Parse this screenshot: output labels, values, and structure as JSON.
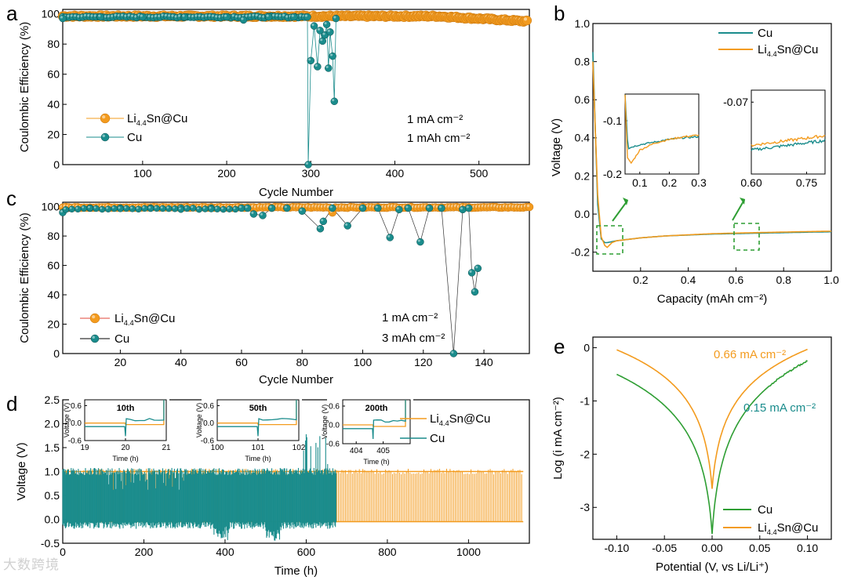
{
  "colors": {
    "orange": "#F39B1E",
    "teal": "#1A8C8C",
    "green": "#2E9E33",
    "inset_box": "#2E9E33"
  },
  "watermark": "大数跨境",
  "chart_data": [
    {
      "panel": "a",
      "type": "scatter",
      "xlabel": "Cycle Number",
      "ylabel": "Coulombic Efficiency (%)",
      "xlim": [
        5,
        560
      ],
      "ylim": [
        0,
        103
      ],
      "xticks": [
        100,
        200,
        300,
        400,
        500
      ],
      "yticks": [
        0,
        20,
        40,
        60,
        80,
        100
      ],
      "legend_position": "middle-left",
      "annotations": [
        "1 mA cm⁻²",
        "1 mAh cm⁻²"
      ],
      "series": [
        {
          "name": "Li4.4Sn@Cu",
          "name_base": "Li",
          "name_sub": "4.4",
          "name_rest": "Sn@Cu",
          "color": "#F39B1E",
          "x_range": [
            5,
            558
          ],
          "baseline": 98.5,
          "end_value": 95
        },
        {
          "name": "Cu",
          "color": "#1A8C8C",
          "x": [
            5,
            50,
            100,
            150,
            200,
            220,
            250,
            280,
            296,
            297,
            300,
            304,
            308,
            311,
            314,
            317,
            319,
            321,
            323,
            326,
            328,
            330
          ],
          "y": [
            97,
            98,
            98,
            98,
            98,
            96,
            98,
            98,
            98,
            0,
            69,
            92,
            65,
            89,
            82,
            86,
            93,
            64,
            88,
            72,
            42,
            97
          ]
        }
      ]
    },
    {
      "panel": "b",
      "type": "line",
      "xlabel": "Capacity (mAh cm⁻²)",
      "ylabel": "Voltage (V)",
      "xlim": [
        0,
        1.0
      ],
      "ylim": [
        -0.3,
        1.0
      ],
      "xticks": [
        0.2,
        0.4,
        0.6,
        0.8,
        1.0
      ],
      "yticks": [
        -0.2,
        0.0,
        0.2,
        0.4,
        0.6,
        0.8,
        1.0
      ],
      "legend_position": "top-right",
      "series": [
        {
          "name": "Cu",
          "color": "#1A8C8C",
          "x": [
            0.0,
            0.02,
            0.035,
            0.05,
            0.06,
            0.08,
            0.1,
            0.2,
            0.3,
            0.5,
            0.7,
            0.9,
            1.0
          ],
          "y": [
            0.85,
            0.05,
            -0.13,
            -0.15,
            -0.15,
            -0.145,
            -0.14,
            -0.125,
            -0.115,
            -0.105,
            -0.1,
            -0.095,
            -0.093
          ]
        },
        {
          "name": "Li4.4Sn@Cu",
          "name_base": "Li",
          "name_sub": "4.4",
          "name_rest": "Sn@Cu",
          "color": "#F39B1E",
          "x": [
            0.0,
            0.02,
            0.035,
            0.05,
            0.06,
            0.08,
            0.1,
            0.2,
            0.3,
            0.5,
            0.7,
            0.9,
            1.0
          ],
          "y": [
            0.8,
            0.1,
            -0.12,
            -0.165,
            -0.175,
            -0.15,
            -0.14,
            -0.125,
            -0.115,
            -0.103,
            -0.097,
            -0.092,
            -0.09
          ]
        }
      ],
      "insets": [
        {
          "xlim": [
            0.05,
            0.3
          ],
          "ylim": [
            -0.2,
            -0.05
          ],
          "xticks": [
            0.1,
            0.2,
            0.3
          ],
          "yticks": [
            -0.1,
            -0.2
          ],
          "series": [
            {
              "color": "#1A8C8C",
              "x": [
                0.05,
                0.06,
                0.08,
                0.1,
                0.15,
                0.2,
                0.25,
                0.3
              ],
              "y": [
                -0.05,
                -0.152,
                -0.148,
                -0.145,
                -0.14,
                -0.135,
                -0.132,
                -0.13
              ]
            },
            {
              "color": "#F39B1E",
              "x": [
                0.05,
                0.058,
                0.07,
                0.08,
                0.1,
                0.15,
                0.2,
                0.25,
                0.3
              ],
              "y": [
                -0.05,
                -0.17,
                -0.18,
                -0.172,
                -0.155,
                -0.142,
                -0.135,
                -0.13,
                -0.127
              ]
            }
          ]
        },
        {
          "xlim": [
            0.6,
            0.8
          ],
          "ylim": [
            -0.1,
            -0.065
          ],
          "xticks": [
            0.6,
            0.75
          ],
          "yticks": [
            -0.07
          ],
          "series": [
            {
              "color": "#1A8C8C",
              "x": [
                0.6,
                0.65,
                0.7,
                0.75,
                0.8
              ],
              "y": [
                -0.09,
                -0.089,
                -0.088,
                -0.087,
                -0.086
              ]
            },
            {
              "color": "#F39B1E",
              "x": [
                0.6,
                0.65,
                0.7,
                0.75,
                0.8
              ],
              "y": [
                -0.088,
                -0.087,
                -0.086,
                -0.085,
                -0.084
              ]
            }
          ]
        }
      ]
    },
    {
      "panel": "c",
      "type": "scatter",
      "xlabel": "Cycle Number",
      "ylabel": "Coulombic Efficiency (%)",
      "xlim": [
        1,
        155
      ],
      "ylim": [
        0,
        103
      ],
      "xticks": [
        20,
        40,
        60,
        80,
        100,
        120,
        140
      ],
      "yticks": [
        0,
        20,
        40,
        60,
        80,
        100
      ],
      "legend_position": "lower-left",
      "annotations": [
        "1 mA cm⁻²",
        "3 mAh cm⁻²"
      ],
      "series": [
        {
          "name": "Li4.4Sn@Cu",
          "name_base": "Li",
          "name_sub": "4.4",
          "name_rest": "Sn@Cu",
          "color": "#F39B1E",
          "x_range": [
            1,
            155
          ],
          "baseline": 99.5,
          "dips": [
            [
              90,
              96
            ]
          ]
        },
        {
          "name": "Cu",
          "color": "#1A8C8C",
          "x": [
            1,
            10,
            20,
            30,
            40,
            50,
            60,
            62,
            64,
            67,
            70,
            75,
            80,
            86,
            87,
            90,
            95,
            100,
            105,
            109,
            112,
            115,
            119,
            122,
            126,
            130,
            133,
            135,
            136,
            137,
            138
          ],
          "y": [
            96,
            99,
            99,
            99,
            99,
            99,
            99,
            99,
            95,
            94,
            99,
            99,
            97,
            85,
            90,
            99,
            87,
            99,
            99,
            79,
            98,
            99,
            76,
            99,
            99,
            0,
            98,
            99,
            55,
            42,
            58
          ]
        }
      ]
    },
    {
      "panel": "d",
      "type": "line",
      "xlabel": "Time (h)",
      "ylabel": "Voltage (V)",
      "xlim": [
        0,
        1150
      ],
      "ylim": [
        -0.5,
        2.5
      ],
      "xticks": [
        0,
        200,
        400,
        600,
        800,
        1000
      ],
      "yticks": [
        -0.5,
        0.0,
        0.5,
        1.0,
        1.5,
        2.0,
        2.5
      ],
      "legend_position": "top-right",
      "series": [
        {
          "name": "Li4.4Sn@Cu",
          "name_base": "Li",
          "name_sub": "4.4",
          "name_rest": "Sn@Cu",
          "color": "#F39B1E",
          "x_range": [
            0,
            1135
          ],
          "upper": 1.0,
          "lower": -0.05
        },
        {
          "name": "Cu",
          "color": "#1A8C8C",
          "x_range": [
            0,
            675
          ],
          "upper": 1.05,
          "lower": -0.1,
          "spike_max": 1.8,
          "dip_min": -0.45
        }
      ],
      "insets": [
        {
          "title": "10th",
          "ylabel": "Voltage (V)",
          "xlabel": "Time (h)",
          "xlim": [
            19,
            21
          ],
          "ylim": [
            -0.6,
            0.8
          ],
          "xticks": [
            19,
            20,
            21
          ],
          "yticks": [
            0.6,
            0.0,
            -0.6
          ]
        },
        {
          "title": "50th",
          "ylabel": "Voltage (V)",
          "xlabel": "Time (h)",
          "xlim": [
            100,
            102
          ],
          "ylim": [
            -0.6,
            0.8
          ],
          "xticks": [
            100,
            101,
            102
          ],
          "yticks": [
            0.6,
            0.0,
            -0.6
          ]
        },
        {
          "title": "200th",
          "ylabel": "Voltage (V)",
          "xlabel": "Time (h)",
          "xlim": [
            403.5,
            406
          ],
          "ylim": [
            -0.6,
            0.8
          ],
          "xticks": [
            404,
            405
          ],
          "yticks": [
            0.6,
            0.0,
            -0.6
          ]
        }
      ]
    },
    {
      "panel": "e",
      "type": "line",
      "xlabel": "Potential (V, vs Li/Li⁺)",
      "ylabel": "Log (i mA cm⁻²)",
      "xlim": [
        -0.125,
        0.125
      ],
      "ylim": [
        -3.6,
        0.2
      ],
      "xticks": [
        -0.1,
        -0.05,
        0.0,
        0.05,
        0.1
      ],
      "yticks": [
        0,
        -1,
        -2,
        -3
      ],
      "legend_position": "bottom-right",
      "annotations": [
        "0.66 mA cm⁻²",
        "0.15 mA cm⁻²"
      ],
      "series": [
        {
          "name": "Cu",
          "color": "#2E9E33",
          "x_range": [
            -0.1,
            0.1
          ],
          "min_at": 0.0,
          "min_value": -3.5,
          "left_end": -0.5,
          "right_end": -0.25
        },
        {
          "name": "Li4.4Sn@Cu",
          "name_base": "Li",
          "name_sub": "4.4",
          "name_rest": "Sn@Cu",
          "color": "#F39B1E",
          "x_range": [
            -0.1,
            0.1
          ],
          "min_at": 0.0,
          "min_value": -2.65,
          "left_end": -0.04,
          "right_end": -0.03
        }
      ]
    }
  ]
}
